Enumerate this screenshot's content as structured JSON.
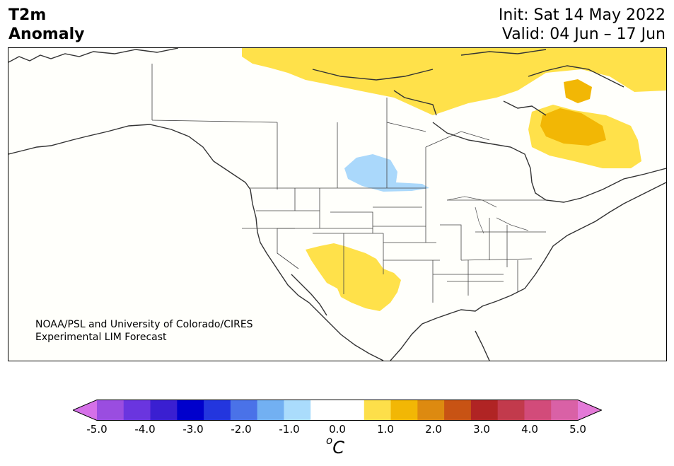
{
  "title": {
    "line1": "T2m",
    "line2": "Anomaly",
    "init": "Init: Sat 14 May 2022",
    "valid": "Valid: 04 Jun – 17 Jun"
  },
  "map": {
    "credit_line1": "NOAA/PSL and University of Colorado/CIRES",
    "credit_line2": "Experimental LIM Forecast",
    "anomaly_regions": [
      {
        "region": "Northern Canada / Nunavut",
        "level": "0.5 to 1.0",
        "color": "#ffe14a"
      },
      {
        "region": "Hudson Bay north",
        "level": "1.0 to 1.5",
        "color": "#f2b705"
      },
      {
        "region": "Quebec / Labrador",
        "level": "1.0 to 1.5",
        "color": "#f2b705"
      },
      {
        "region": "US Southwest (AZ, NM, W TX)",
        "level": "0.5 to 1.0",
        "color": "#ffe14a"
      },
      {
        "region": "Saskatchewan / Manitoba border",
        "level": "-1.0 to -0.5",
        "color": "#aad8fb"
      }
    ]
  },
  "colorbar": {
    "unit_base": "C",
    "unit_sup": "o",
    "tick_labels": [
      "-5.0",
      "-4.0",
      "-3.0",
      "-2.0",
      "-1.0",
      "0.0",
      "1.0",
      "2.0",
      "3.0",
      "4.0",
      "5.0"
    ],
    "colors": [
      "#d570e8",
      "#9a4de0",
      "#6a35df",
      "#3a1fd1",
      "#0000cc",
      "#2336de",
      "#4a72e8",
      "#72b0f2",
      "#aadcfc",
      "#ffffff",
      "#ffffff",
      "#fddf4a",
      "#f2b705",
      "#dd8a10",
      "#c85314",
      "#b02424",
      "#c23a4c",
      "#d24b7a",
      "#d961a6",
      "#e47ad8"
    ]
  }
}
